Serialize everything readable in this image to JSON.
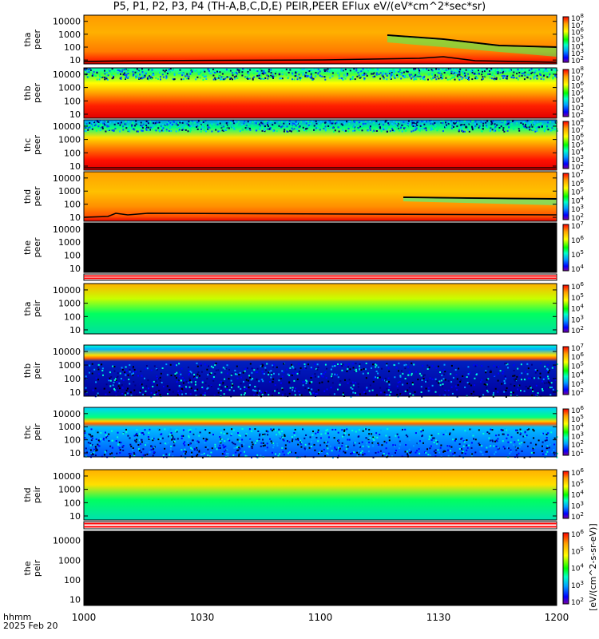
{
  "title": "P5, P1, P2, P3, P4 (TH-A,B,C,D,E) PEIR,PEER EFlux eV/(eV*cm^2*sec*sr)",
  "colorbar_units": "[eV/(cm^2-s-sr-eV)]",
  "xaxis": {
    "label_line1": "hhmm",
    "label_line2": "2025 Feb 20"
  },
  "chart_data": {
    "type": "heatmap",
    "x": {
      "ticks": [
        "1000",
        "1030",
        "1100",
        "1130",
        "1200"
      ],
      "range": [
        "10:00",
        "12:00"
      ]
    },
    "y": {
      "scale": "log",
      "ticks": [
        "10",
        "100",
        "1000",
        "10000"
      ],
      "range": [
        5,
        30000
      ],
      "unit": "eV"
    },
    "colorscale": [
      "#7a00a0",
      "#0000ff",
      "#00a0ff",
      "#00ffc8",
      "#00ff00",
      "#ffff00",
      "#ffa000",
      "#ff0000"
    ],
    "panels": [
      {
        "probe": "tha",
        "species": "peer",
        "ylabel": [
          "tha",
          "peer"
        ],
        "cbar_ticks": [
          "10^2",
          "10^3",
          "10^4",
          "10^5",
          "10^6",
          "10^7",
          "10^8"
        ],
        "status": "data"
      },
      {
        "probe": "thb",
        "species": "peer",
        "ylabel": [
          "thb",
          "peer"
        ],
        "cbar_ticks": [
          "10^2",
          "10^3",
          "10^4",
          "10^5",
          "10^6",
          "10^7",
          "10^8"
        ],
        "status": "data"
      },
      {
        "probe": "thc",
        "species": "peer",
        "ylabel": [
          "thc",
          "peer"
        ],
        "cbar_ticks": [
          "10^2",
          "10^3",
          "10^4",
          "10^5",
          "10^6",
          "10^7",
          "10^8"
        ],
        "status": "data"
      },
      {
        "probe": "thd",
        "species": "peer",
        "ylabel": [
          "thd",
          "peer"
        ],
        "cbar_ticks": [
          "10^2",
          "10^3",
          "10^4",
          "10^5",
          "10^6",
          "10^7"
        ],
        "status": "data"
      },
      {
        "probe": "the",
        "species": "peer",
        "ylabel": [
          "the",
          "peer"
        ],
        "cbar_ticks": [
          "10^4",
          "10^5",
          "10^6",
          "10^7"
        ],
        "status": "no data"
      },
      {
        "probe": "tha",
        "species": "peir",
        "ylabel": [
          "tha",
          "peir"
        ],
        "cbar_ticks": [
          "10^2",
          "10^3",
          "10^4",
          "10^5",
          "10^6"
        ],
        "status": "data"
      },
      {
        "probe": "thb",
        "species": "peir",
        "ylabel": [
          "thb",
          "peir"
        ],
        "cbar_ticks": [
          "10^2",
          "10^3",
          "10^4",
          "10^5",
          "10^6",
          "10^7"
        ],
        "status": "data"
      },
      {
        "probe": "thc",
        "species": "peir",
        "ylabel": [
          "thc",
          "peir"
        ],
        "cbar_ticks": [
          "10^1",
          "10^2",
          "10^3",
          "10^4",
          "10^5",
          "10^6"
        ],
        "status": "data"
      },
      {
        "probe": "thd",
        "species": "peir",
        "ylabel": [
          "thd",
          "peir"
        ],
        "cbar_ticks": [
          "10^2",
          "10^3",
          "10^4",
          "10^5",
          "10^6"
        ],
        "status": "data"
      },
      {
        "probe": "the",
        "species": "peir",
        "ylabel": [
          "the",
          "peir"
        ],
        "cbar_ticks": [
          "10^2",
          "10^3",
          "10^4",
          "10^5",
          "10^6"
        ],
        "status": "no data"
      }
    ]
  }
}
